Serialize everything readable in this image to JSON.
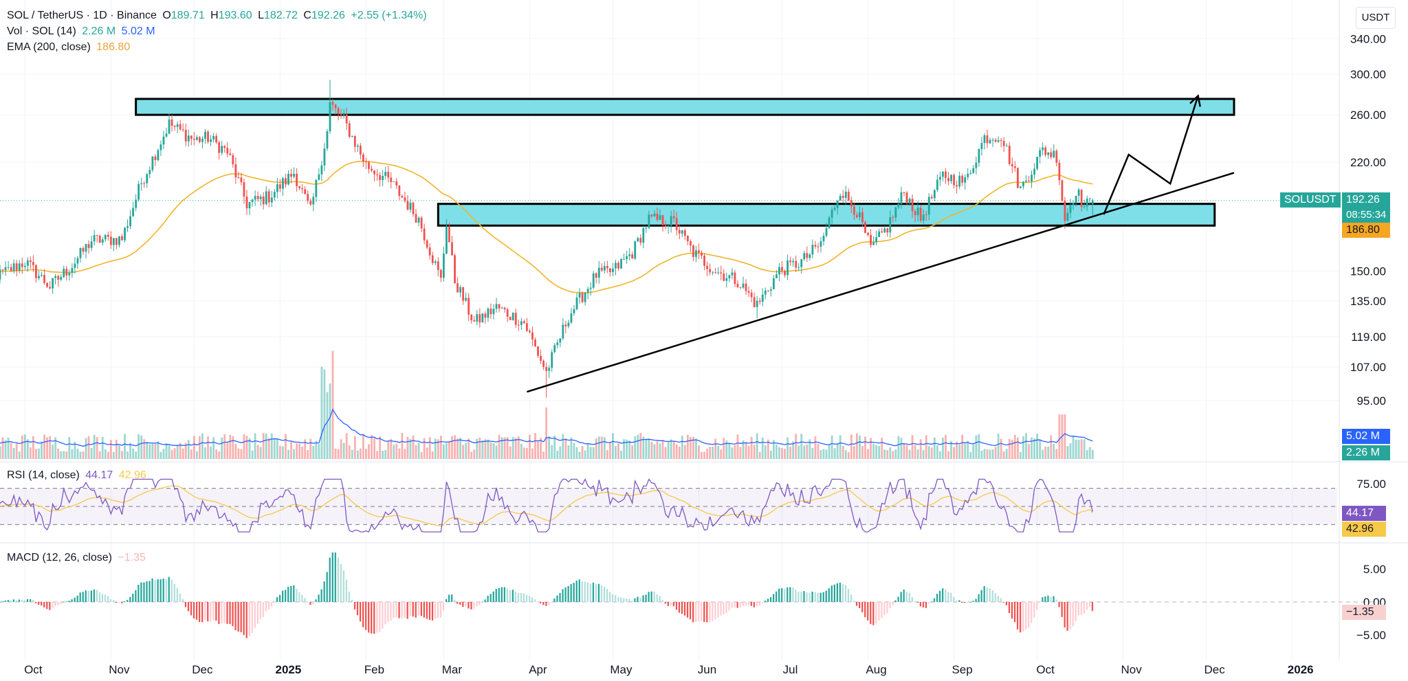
{
  "header": {
    "symbol": "SOL / TetherUS · 1D · Binance",
    "o_label": "O",
    "o_value": "189.71",
    "h_label": "H",
    "h_value": "193.60",
    "l_label": "L",
    "l_value": "182.72",
    "c_label": "C",
    "c_value": "192.26",
    "change": "+2.55 (+1.34%)",
    "vol_label": "Vol · SOL (14)",
    "vol_value1": "2.26 M",
    "vol_value2": "5.02 M",
    "ema_label": "EMA (200, close)",
    "ema_value": "186.80",
    "rsi_label": "RSI (14, close)",
    "rsi_value1": "44.17",
    "rsi_value2": "42.96",
    "macd_label": "MACD (12, 26, close)",
    "macd_value": "−1.35",
    "currency": "USDT"
  },
  "price_tags": {
    "symbol": "SOLUSDT",
    "last": "192.26",
    "countdown": "08:55:34",
    "ema": "186.80",
    "vol_ma": "5.02 M",
    "vol": "2.26 M",
    "rsi": "44.17",
    "rsi_ma": "42.96",
    "macd": "−1.35"
  },
  "colors": {
    "up": "#26a69a",
    "down": "#ef5350",
    "ema": "#f0b429",
    "zone": "#7edfe8",
    "vol_ma": "#2962ff",
    "rsi": "#7e57c2",
    "rsi_ma": "#f7c948"
  },
  "chart_data": {
    "type": "candlestick",
    "title": "SOL / TetherUS · 1D · Binance",
    "y_scale": "log",
    "y_ticks": [
      {
        "label": "340.00",
        "value": 340
      },
      {
        "label": "300.00",
        "value": 300
      },
      {
        "label": "260.00",
        "value": 260
      },
      {
        "label": "220.00",
        "value": 220
      },
      {
        "label": "150.00",
        "value": 150
      },
      {
        "label": "135.00",
        "value": 135
      },
      {
        "label": "119.00",
        "value": 119
      },
      {
        "label": "107.00",
        "value": 107
      },
      {
        "label": "95.00",
        "value": 95
      }
    ],
    "x_labels": [
      "Oct",
      "Nov",
      "Dec",
      "2025",
      "Feb",
      "Mar",
      "Apr",
      "May",
      "Jun",
      "Jul",
      "Aug",
      "Sep",
      "Oct",
      "Nov",
      "Dec",
      "2026"
    ],
    "close_path": [
      [
        "2024-09-22",
        148
      ],
      [
        "2024-10-01",
        155
      ],
      [
        "2024-10-10",
        142
      ],
      [
        "2024-10-18",
        153
      ],
      [
        "2024-10-25",
        167
      ],
      [
        "2024-11-05",
        168
      ],
      [
        "2024-11-12",
        205
      ],
      [
        "2024-11-22",
        252
      ],
      [
        "2024-12-01",
        238
      ],
      [
        "2024-12-06",
        240
      ],
      [
        "2024-12-13",
        228
      ],
      [
        "2024-12-20",
        190
      ],
      [
        "2024-12-28",
        195
      ],
      [
        "2025-01-06",
        212
      ],
      [
        "2025-01-12",
        185
      ],
      [
        "2025-01-18",
        245
      ],
      [
        "2025-01-19",
        270
      ],
      [
        "2025-01-24",
        255
      ],
      [
        "2025-02-01",
        218
      ],
      [
        "2025-02-10",
        205
      ],
      [
        "2025-02-20",
        180
      ],
      [
        "2025-02-28",
        145
      ],
      [
        "2025-03-02",
        178
      ],
      [
        "2025-03-05",
        145
      ],
      [
        "2025-03-12",
        125
      ],
      [
        "2025-03-20",
        132
      ],
      [
        "2025-03-30",
        125
      ],
      [
        "2025-04-07",
        105
      ],
      [
        "2025-04-15",
        128
      ],
      [
        "2025-04-25",
        148
      ],
      [
        "2025-05-01",
        150
      ],
      [
        "2025-05-08",
        160
      ],
      [
        "2025-05-14",
        180
      ],
      [
        "2025-05-23",
        178
      ],
      [
        "2025-05-30",
        160
      ],
      [
        "2025-06-07",
        150
      ],
      [
        "2025-06-15",
        145
      ],
      [
        "2025-06-22",
        133
      ],
      [
        "2025-06-30",
        150
      ],
      [
        "2025-07-08",
        155
      ],
      [
        "2025-07-15",
        165
      ],
      [
        "2025-07-22",
        200
      ],
      [
        "2025-07-28",
        185
      ],
      [
        "2025-08-02",
        162
      ],
      [
        "2025-08-08",
        175
      ],
      [
        "2025-08-14",
        198
      ],
      [
        "2025-08-20",
        180
      ],
      [
        "2025-08-28",
        210
      ],
      [
        "2025-09-05",
        205
      ],
      [
        "2025-09-12",
        240
      ],
      [
        "2025-09-18",
        242
      ],
      [
        "2025-09-25",
        200
      ],
      [
        "2025-10-03",
        230
      ],
      [
        "2025-10-08",
        225
      ],
      [
        "2025-10-11",
        180
      ],
      [
        "2025-10-15",
        200
      ],
      [
        "2025-10-18",
        188
      ],
      [
        "2025-10-21",
        192.26
      ]
    ],
    "ema200": {
      "value": 186.8
    },
    "current_price": 192.26,
    "rsi": {
      "levels": [
        70,
        50,
        30
      ],
      "ticks": [
        {
          "label": "75.00",
          "value": 75
        }
      ],
      "current": 44.17,
      "ma": 42.96
    },
    "macd": {
      "ticks": [
        {
          "label": "5.00",
          "value": 5
        },
        {
          "label": "0.00",
          "value": 0
        },
        {
          "label": "−5.00",
          "value": -5
        }
      ],
      "current": -1.35
    },
    "annotations": [
      {
        "type": "resistance_zone",
        "from": "2024-11-10",
        "to": "2025-12-11",
        "low": 260,
        "high": 275
      },
      {
        "type": "support_zone",
        "from": "2025-02-27",
        "to": "2025-12-04",
        "low": 176,
        "high": 190
      },
      {
        "type": "trendline",
        "from": [
          "2025-03-31",
          98
        ],
        "to": [
          "2025-12-11",
          212
        ]
      },
      {
        "type": "projection",
        "points": [
          [
            "2025-10-25",
            183
          ],
          [
            "2025-11-03",
            226
          ],
          [
            "2025-11-18",
            204
          ],
          [
            "2025-11-28",
            278
          ]
        ]
      }
    ]
  }
}
